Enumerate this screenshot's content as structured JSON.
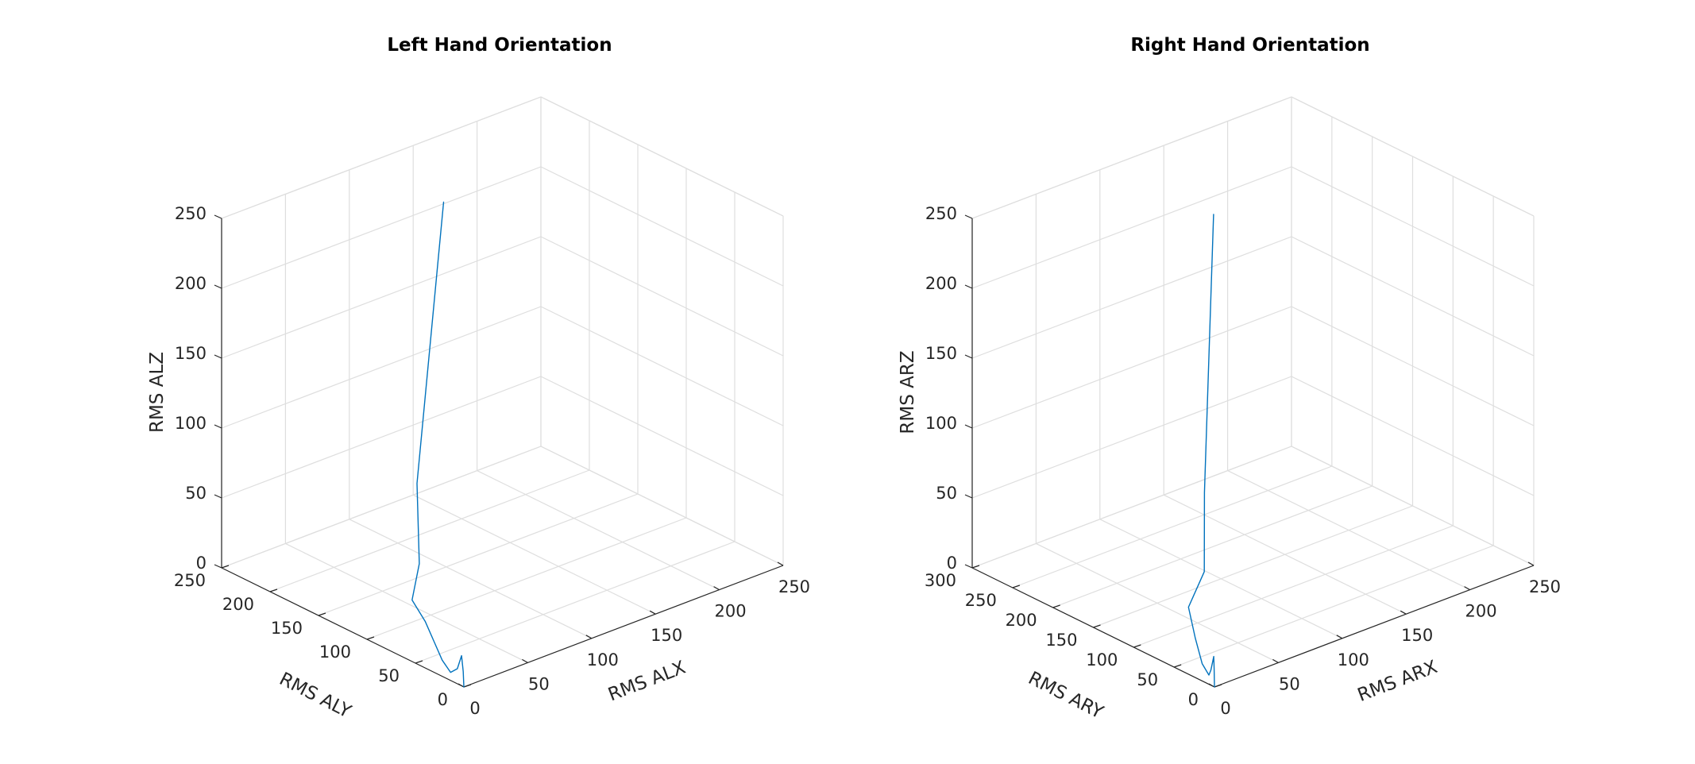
{
  "chart_data": [
    {
      "type": "line3d",
      "title": "Left Hand Orientation",
      "xlabel": "RMS ALX",
      "ylabel": "RMS ALY",
      "zlabel": "RMS ALZ",
      "xlim": [
        0,
        250
      ],
      "ylim": [
        0,
        250
      ],
      "zlim": [
        0,
        250
      ],
      "xticks": [
        0,
        50,
        100,
        150,
        200,
        250
      ],
      "yticks": [
        0,
        50,
        100,
        150,
        200,
        250
      ],
      "zticks": [
        0,
        50,
        100,
        150,
        200,
        250
      ],
      "grid": true,
      "line_color": "#0072bd",
      "series": [
        {
          "x": [
            0,
            1,
            2,
            1,
            1,
            2,
            3,
            4,
            5,
            22,
            24,
            60
          ],
          "y": [
            0,
            2,
            5,
            8,
            15,
            25,
            35,
            45,
            60,
            75,
            80,
            100
          ],
          "z": [
            0,
            10,
            20,
            10,
            5,
            10,
            20,
            30,
            40,
            55,
            110,
            292
          ]
        }
      ]
    },
    {
      "type": "line3d",
      "title": "Right Hand Orientation",
      "xlabel": "RMS ARX",
      "ylabel": "RMS ARY",
      "zlabel": "RMS ARZ",
      "xlim": [
        0,
        250
      ],
      "ylim": [
        0,
        300
      ],
      "zlim": [
        0,
        250
      ],
      "xticks": [
        0,
        50,
        100,
        150,
        200,
        250
      ],
      "yticks": [
        0,
        50,
        100,
        150,
        200,
        250,
        300
      ],
      "zticks": [
        0,
        50,
        100,
        150,
        200,
        250
      ],
      "grid": true,
      "line_color": "#0072bd",
      "series": [
        {
          "x": [
            0,
            1,
            2,
            1,
            2,
            3,
            4,
            10,
            30,
            32,
            60
          ],
          "y": [
            0,
            2,
            4,
            6,
            10,
            20,
            30,
            48,
            60,
            63,
            96
          ],
          "z": [
            0,
            12,
            20,
            10,
            5,
            10,
            25,
            40,
            55,
            110,
            290
          ]
        }
      ]
    }
  ]
}
